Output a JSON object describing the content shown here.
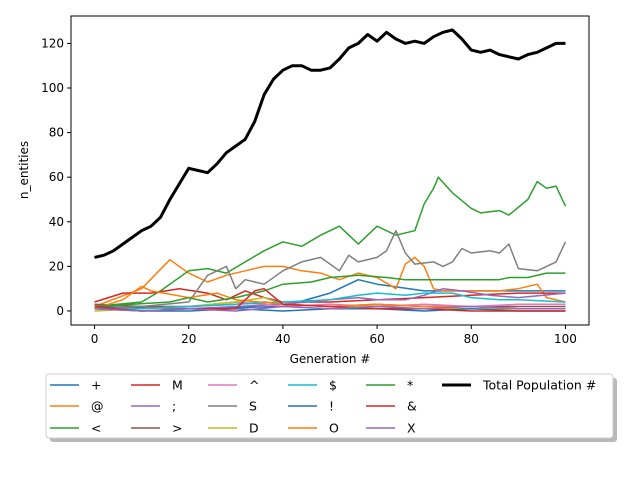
{
  "chart_data": {
    "type": "line",
    "title": "",
    "xlabel": "Generation #",
    "ylabel": "n_entities",
    "xlim": [
      -5,
      105
    ],
    "ylim": [
      -6.3,
      132.3
    ],
    "xticks": [
      0,
      20,
      40,
      60,
      80,
      100
    ],
    "yticks": [
      0,
      20,
      40,
      60,
      80,
      100,
      120
    ],
    "grid": false,
    "legend_position": "below-plot",
    "legend_columns": 7,
    "series": [
      {
        "name": "+",
        "color": "#1f77b4",
        "linewidth": 1.5,
        "points": [
          [
            0,
            2
          ],
          [
            20,
            1
          ],
          [
            40,
            2
          ],
          [
            50,
            8
          ],
          [
            56,
            14
          ],
          [
            60,
            12
          ],
          [
            70,
            9
          ],
          [
            80,
            9
          ],
          [
            90,
            9
          ],
          [
            100,
            9
          ]
        ]
      },
      {
        "name": "@",
        "color": "#ff7f0e",
        "linewidth": 1.5,
        "points": [
          [
            0,
            2
          ],
          [
            10,
            10
          ],
          [
            16,
            23
          ],
          [
            20,
            17
          ],
          [
            24,
            13
          ],
          [
            28,
            16
          ],
          [
            32,
            18
          ],
          [
            36,
            20
          ],
          [
            40,
            20
          ],
          [
            44,
            18
          ],
          [
            48,
            17
          ],
          [
            52,
            14
          ],
          [
            56,
            17
          ],
          [
            60,
            15
          ],
          [
            64,
            10
          ],
          [
            66,
            21
          ],
          [
            68,
            24
          ],
          [
            70,
            20
          ],
          [
            72,
            10
          ],
          [
            74,
            9
          ],
          [
            80,
            9
          ],
          [
            86,
            9
          ],
          [
            90,
            10
          ],
          [
            94,
            12
          ],
          [
            96,
            6
          ],
          [
            100,
            4
          ]
        ]
      },
      {
        "name": "<",
        "color": "#2ca02c",
        "linewidth": 1.5,
        "points": [
          [
            0,
            2
          ],
          [
            10,
            4
          ],
          [
            14,
            9
          ],
          [
            20,
            18
          ],
          [
            24,
            19
          ],
          [
            28,
            17
          ],
          [
            32,
            22
          ],
          [
            36,
            27
          ],
          [
            40,
            31
          ],
          [
            44,
            29
          ],
          [
            48,
            34
          ],
          [
            52,
            38
          ],
          [
            56,
            30
          ],
          [
            60,
            38
          ],
          [
            64,
            34
          ],
          [
            68,
            36
          ],
          [
            70,
            48
          ],
          [
            72,
            55
          ],
          [
            73,
            60
          ],
          [
            76,
            53
          ],
          [
            80,
            46
          ],
          [
            82,
            44
          ],
          [
            86,
            45
          ],
          [
            88,
            43
          ],
          [
            92,
            50
          ],
          [
            94,
            58
          ],
          [
            96,
            55
          ],
          [
            98,
            56
          ],
          [
            100,
            47
          ]
        ]
      },
      {
        "name": "M",
        "color": "#d62728",
        "linewidth": 1.5,
        "points": [
          [
            0,
            4
          ],
          [
            6,
            8
          ],
          [
            12,
            8
          ],
          [
            18,
            10
          ],
          [
            24,
            8
          ],
          [
            28,
            5
          ],
          [
            32,
            9
          ],
          [
            36,
            6
          ],
          [
            40,
            4
          ],
          [
            50,
            4
          ],
          [
            60,
            5
          ],
          [
            70,
            6
          ],
          [
            80,
            7
          ],
          [
            90,
            8
          ],
          [
            100,
            8
          ]
        ]
      },
      {
        "name": ";",
        "color": "#9467bd",
        "linewidth": 1.5,
        "points": [
          [
            0,
            1
          ],
          [
            10,
            2
          ],
          [
            20,
            1
          ],
          [
            30,
            2
          ],
          [
            40,
            3
          ],
          [
            50,
            5
          ],
          [
            56,
            6
          ],
          [
            60,
            5
          ],
          [
            66,
            5
          ],
          [
            70,
            7
          ],
          [
            74,
            10
          ],
          [
            78,
            9
          ],
          [
            84,
            7
          ],
          [
            90,
            6
          ],
          [
            100,
            8
          ]
        ]
      },
      {
        "name": ">",
        "color": "#8c564b",
        "linewidth": 1.5,
        "points": [
          [
            0,
            3
          ],
          [
            10,
            2
          ],
          [
            20,
            2
          ],
          [
            30,
            3
          ],
          [
            36,
            4
          ],
          [
            40,
            3
          ],
          [
            50,
            2
          ],
          [
            60,
            3
          ],
          [
            70,
            2
          ],
          [
            80,
            2
          ],
          [
            90,
            2
          ],
          [
            100,
            2
          ]
        ]
      },
      {
        "name": "^",
        "color": "#e377c2",
        "linewidth": 1.5,
        "points": [
          [
            0,
            1
          ],
          [
            10,
            1
          ],
          [
            20,
            2
          ],
          [
            30,
            4
          ],
          [
            36,
            3
          ],
          [
            40,
            2
          ],
          [
            50,
            3
          ],
          [
            60,
            2
          ],
          [
            70,
            3
          ],
          [
            80,
            2
          ],
          [
            90,
            3
          ],
          [
            100,
            3
          ]
        ]
      },
      {
        "name": "S",
        "color": "#7f7f7f",
        "linewidth": 1.5,
        "points": [
          [
            0,
            1
          ],
          [
            10,
            2
          ],
          [
            20,
            4
          ],
          [
            24,
            16
          ],
          [
            28,
            20
          ],
          [
            30,
            10
          ],
          [
            32,
            14
          ],
          [
            36,
            12
          ],
          [
            40,
            18
          ],
          [
            44,
            22
          ],
          [
            48,
            24
          ],
          [
            52,
            18
          ],
          [
            54,
            25
          ],
          [
            56,
            22
          ],
          [
            60,
            24
          ],
          [
            62,
            27
          ],
          [
            64,
            36
          ],
          [
            66,
            26
          ],
          [
            68,
            21
          ],
          [
            72,
            22
          ],
          [
            74,
            20
          ],
          [
            76,
            22
          ],
          [
            78,
            28
          ],
          [
            80,
            26
          ],
          [
            84,
            27
          ],
          [
            86,
            26
          ],
          [
            88,
            30
          ],
          [
            90,
            19
          ],
          [
            94,
            18
          ],
          [
            96,
            20
          ],
          [
            98,
            22
          ],
          [
            100,
            31
          ]
        ]
      },
      {
        "name": "D",
        "color": "#bcbd22",
        "linewidth": 1.5,
        "points": [
          [
            0,
            0
          ],
          [
            20,
            2
          ],
          [
            30,
            4
          ],
          [
            36,
            6
          ],
          [
            40,
            3
          ],
          [
            50,
            2
          ],
          [
            60,
            2
          ],
          [
            70,
            1
          ],
          [
            80,
            1
          ],
          [
            90,
            1
          ],
          [
            100,
            1
          ]
        ]
      },
      {
        "name": "$",
        "color": "#17becf",
        "linewidth": 1.5,
        "points": [
          [
            0,
            1
          ],
          [
            10,
            1
          ],
          [
            20,
            2
          ],
          [
            30,
            3
          ],
          [
            40,
            4
          ],
          [
            50,
            5
          ],
          [
            56,
            7
          ],
          [
            60,
            8
          ],
          [
            66,
            7
          ],
          [
            70,
            8
          ],
          [
            76,
            8
          ],
          [
            80,
            6
          ],
          [
            86,
            5
          ],
          [
            90,
            5
          ],
          [
            100,
            4
          ]
        ]
      },
      {
        "name": "!",
        "color": "#1f77b4",
        "linewidth": 1.5,
        "points": [
          [
            0,
            1
          ],
          [
            10,
            0
          ],
          [
            20,
            0
          ],
          [
            30,
            1
          ],
          [
            40,
            0
          ],
          [
            50,
            1
          ],
          [
            60,
            1
          ],
          [
            70,
            0
          ],
          [
            80,
            1
          ],
          [
            90,
            0
          ],
          [
            100,
            0
          ]
        ]
      },
      {
        "name": "O",
        "color": "#ff7f0e",
        "linewidth": 1.5,
        "points": [
          [
            0,
            1
          ],
          [
            6,
            5
          ],
          [
            10,
            11
          ],
          [
            12,
            9
          ],
          [
            20,
            6
          ],
          [
            26,
            8
          ],
          [
            30,
            5
          ],
          [
            40,
            3
          ],
          [
            50,
            2
          ],
          [
            60,
            3
          ],
          [
            70,
            2
          ],
          [
            80,
            2
          ],
          [
            90,
            1
          ],
          [
            100,
            1
          ]
        ]
      },
      {
        "name": "*",
        "color": "#2ca02c",
        "linewidth": 1.5,
        "points": [
          [
            0,
            2
          ],
          [
            8,
            3
          ],
          [
            16,
            4
          ],
          [
            20,
            6
          ],
          [
            24,
            4
          ],
          [
            30,
            6
          ],
          [
            36,
            9
          ],
          [
            40,
            12
          ],
          [
            46,
            13
          ],
          [
            50,
            15
          ],
          [
            56,
            16
          ],
          [
            62,
            15
          ],
          [
            66,
            14
          ],
          [
            70,
            14
          ],
          [
            76,
            14
          ],
          [
            80,
            14
          ],
          [
            86,
            14
          ],
          [
            88,
            15
          ],
          [
            92,
            15
          ],
          [
            96,
            17
          ],
          [
            100,
            17
          ]
        ]
      },
      {
        "name": "&",
        "color": "#d62728",
        "linewidth": 1.5,
        "points": [
          [
            0,
            2
          ],
          [
            10,
            0
          ],
          [
            20,
            1
          ],
          [
            30,
            1
          ],
          [
            34,
            9
          ],
          [
            36,
            10
          ],
          [
            40,
            3
          ],
          [
            50,
            2
          ],
          [
            60,
            1
          ],
          [
            70,
            1
          ],
          [
            80,
            0
          ],
          [
            90,
            0
          ],
          [
            100,
            0
          ]
        ]
      },
      {
        "name": "X",
        "color": "#9467bd",
        "linewidth": 1.5,
        "points": [
          [
            0,
            1
          ],
          [
            10,
            0
          ],
          [
            20,
            1
          ],
          [
            30,
            0
          ],
          [
            40,
            2
          ],
          [
            50,
            1
          ],
          [
            60,
            2
          ],
          [
            70,
            1
          ],
          [
            80,
            2
          ],
          [
            90,
            1
          ],
          [
            100,
            1
          ]
        ]
      },
      {
        "name": "Total Population #",
        "color": "#000000",
        "linewidth": 3,
        "points": [
          [
            0,
            24
          ],
          [
            2,
            25
          ],
          [
            4,
            27
          ],
          [
            6,
            30
          ],
          [
            8,
            33
          ],
          [
            10,
            36
          ],
          [
            12,
            38
          ],
          [
            14,
            42
          ],
          [
            16,
            50
          ],
          [
            18,
            57
          ],
          [
            20,
            64
          ],
          [
            22,
            63
          ],
          [
            24,
            62
          ],
          [
            26,
            66
          ],
          [
            28,
            71
          ],
          [
            30,
            74
          ],
          [
            32,
            77
          ],
          [
            34,
            85
          ],
          [
            36,
            97
          ],
          [
            38,
            104
          ],
          [
            40,
            108
          ],
          [
            42,
            110
          ],
          [
            44,
            110
          ],
          [
            46,
            108
          ],
          [
            48,
            108
          ],
          [
            50,
            109
          ],
          [
            52,
            113
          ],
          [
            54,
            118
          ],
          [
            56,
            120
          ],
          [
            58,
            124
          ],
          [
            60,
            121
          ],
          [
            62,
            125
          ],
          [
            64,
            122
          ],
          [
            66,
            120
          ],
          [
            68,
            121
          ],
          [
            70,
            120
          ],
          [
            72,
            123
          ],
          [
            74,
            125
          ],
          [
            76,
            126
          ],
          [
            78,
            122
          ],
          [
            80,
            117
          ],
          [
            82,
            116
          ],
          [
            84,
            117
          ],
          [
            86,
            115
          ],
          [
            88,
            114
          ],
          [
            90,
            113
          ],
          [
            92,
            115
          ],
          [
            94,
            116
          ],
          [
            96,
            118
          ],
          [
            98,
            120
          ],
          [
            100,
            120
          ]
        ]
      }
    ]
  }
}
